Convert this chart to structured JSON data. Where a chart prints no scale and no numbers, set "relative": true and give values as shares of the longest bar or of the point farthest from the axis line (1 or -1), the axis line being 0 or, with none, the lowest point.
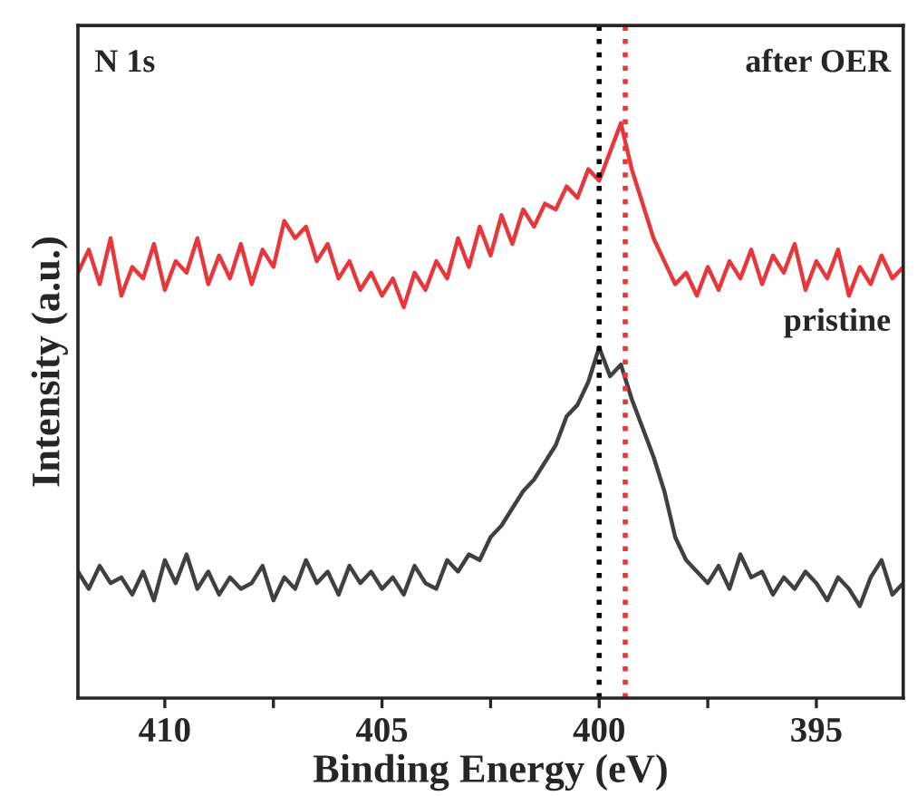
{
  "chart_data": {
    "type": "line",
    "relative": true,
    "xlabel": "Binding Energy (eV)",
    "ylabel": "Intensity (a.u.)",
    "xlim": [
      412,
      393
    ],
    "xticks": [
      410,
      {
        "value": 407.5,
        "label": null
      },
      405,
      {
        "value": 402.5,
        "label": null
      },
      400,
      {
        "value": 397.5,
        "label": null
      },
      395
    ],
    "grid": false,
    "legend": false,
    "line_style": "solid",
    "marker": "none",
    "tick_labels": "x",
    "annotations": [
      "N 1s",
      "after OER",
      "pristine"
    ],
    "ref_lines": [
      {
        "axis": "x",
        "value": 400.0,
        "color": "#000000",
        "line_style": "dotted"
      },
      {
        "axis": "x",
        "value": 399.4,
        "color": "#e8373a",
        "line_style": "dotted"
      }
    ],
    "series": [
      {
        "color": "#e8373a",
        "x": [
          412.0,
          411.75,
          411.5,
          411.25,
          411.0,
          410.75,
          410.5,
          410.25,
          410.0,
          409.75,
          409.5,
          409.25,
          409.0,
          408.75,
          408.5,
          408.25,
          408.0,
          407.75,
          407.5,
          407.25,
          407.0,
          406.75,
          406.5,
          406.25,
          406.0,
          405.75,
          405.5,
          405.25,
          405.0,
          404.75,
          404.5,
          404.25,
          404.0,
          403.75,
          403.5,
          403.25,
          403.0,
          402.75,
          402.5,
          402.25,
          402.0,
          401.75,
          401.5,
          401.25,
          401.0,
          400.75,
          400.5,
          400.25,
          400.0,
          399.75,
          399.5,
          399.25,
          399.0,
          398.75,
          398.5,
          398.25,
          398.0,
          397.75,
          397.5,
          397.25,
          397.0,
          396.75,
          396.5,
          396.25,
          396.0,
          395.75,
          395.5,
          395.25,
          395.0,
          394.75,
          394.5,
          394.25,
          394.0,
          393.75,
          393.5,
          393.25,
          393.0
        ],
        "values": [
          0.74,
          0.78,
          0.72,
          0.8,
          0.7,
          0.75,
          0.73,
          0.79,
          0.71,
          0.76,
          0.74,
          0.8,
          0.72,
          0.77,
          0.73,
          0.79,
          0.72,
          0.78,
          0.75,
          0.83,
          0.8,
          0.82,
          0.76,
          0.79,
          0.73,
          0.76,
          0.71,
          0.74,
          0.7,
          0.73,
          0.68,
          0.74,
          0.71,
          0.76,
          0.73,
          0.8,
          0.75,
          0.82,
          0.77,
          0.84,
          0.79,
          0.85,
          0.82,
          0.86,
          0.85,
          0.89,
          0.87,
          0.92,
          0.9,
          0.95,
          1.0,
          0.92,
          0.86,
          0.8,
          0.76,
          0.72,
          0.74,
          0.7,
          0.75,
          0.71,
          0.76,
          0.73,
          0.78,
          0.72,
          0.77,
          0.74,
          0.79,
          0.71,
          0.76,
          0.73,
          0.78,
          0.7,
          0.75,
          0.72,
          0.77,
          0.73,
          0.75
        ]
      },
      {
        "color": "#404040",
        "x": [
          412.0,
          411.75,
          411.5,
          411.25,
          411.0,
          410.75,
          410.5,
          410.25,
          410.0,
          409.75,
          409.5,
          409.25,
          409.0,
          408.75,
          408.5,
          408.25,
          408.0,
          407.75,
          407.5,
          407.25,
          407.0,
          406.75,
          406.5,
          406.25,
          406.0,
          405.75,
          405.5,
          405.25,
          405.0,
          404.75,
          404.5,
          404.25,
          404.0,
          403.75,
          403.5,
          403.25,
          403.0,
          402.75,
          402.5,
          402.25,
          402.0,
          401.75,
          401.5,
          401.25,
          401.0,
          400.75,
          400.5,
          400.25,
          400.0,
          399.75,
          399.5,
          399.25,
          399.0,
          398.75,
          398.5,
          398.25,
          398.0,
          397.75,
          397.5,
          397.25,
          397.0,
          396.75,
          396.5,
          396.25,
          396.0,
          395.75,
          395.5,
          395.25,
          395.0,
          394.75,
          394.5,
          394.25,
          394.0,
          393.75,
          393.5,
          393.25,
          393.0
        ],
        "values": [
          0.22,
          0.19,
          0.23,
          0.2,
          0.21,
          0.18,
          0.22,
          0.17,
          0.24,
          0.2,
          0.25,
          0.19,
          0.22,
          0.18,
          0.21,
          0.19,
          0.2,
          0.23,
          0.17,
          0.21,
          0.19,
          0.24,
          0.2,
          0.22,
          0.18,
          0.23,
          0.2,
          0.22,
          0.19,
          0.21,
          0.18,
          0.23,
          0.2,
          0.19,
          0.24,
          0.22,
          0.25,
          0.24,
          0.28,
          0.3,
          0.33,
          0.36,
          0.38,
          0.41,
          0.44,
          0.49,
          0.51,
          0.55,
          0.61,
          0.56,
          0.58,
          0.52,
          0.47,
          0.42,
          0.36,
          0.28,
          0.24,
          0.22,
          0.2,
          0.23,
          0.19,
          0.25,
          0.21,
          0.22,
          0.18,
          0.21,
          0.19,
          0.22,
          0.2,
          0.17,
          0.21,
          0.19,
          0.16,
          0.21,
          0.24,
          0.18,
          0.2
        ]
      }
    ]
  }
}
